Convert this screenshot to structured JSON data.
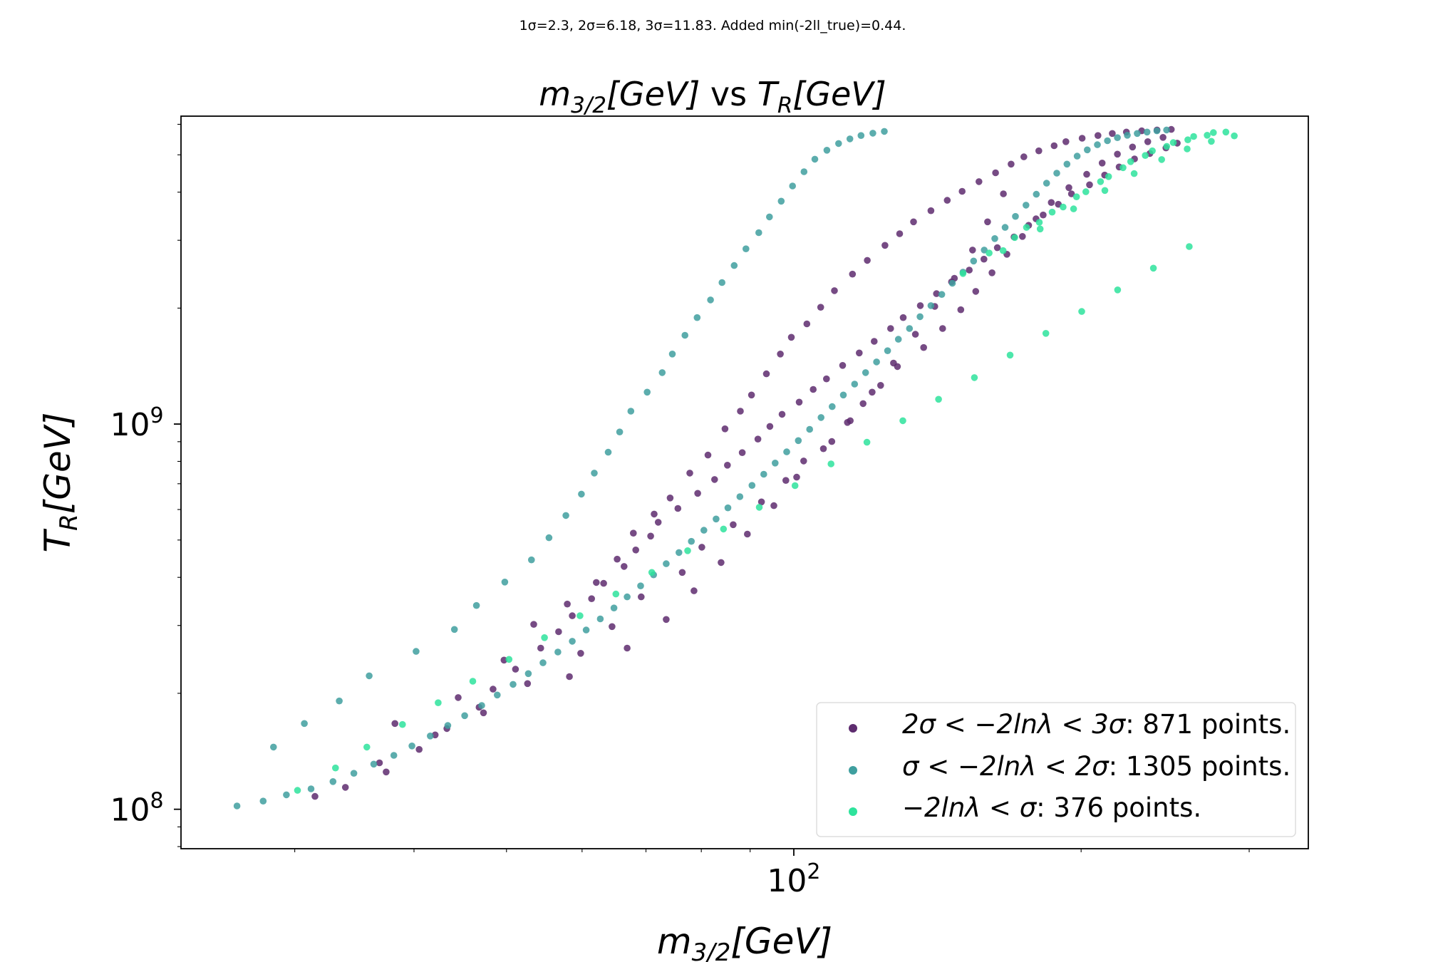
{
  "suptitle": "1σ=2.3, 2σ=6.18, 3σ=11.83. Added min(-2ll_true)=0.44.",
  "title": {
    "x_symbol": "m",
    "x_sub": "3/2",
    "x_unit": "[GeV]",
    "vs": " vs ",
    "y_symbol": "T",
    "y_sub": "R",
    "y_unit": "[GeV]"
  },
  "axes": {
    "xlabel": {
      "symbol": "m",
      "sub": "3/2",
      "unit": "[GeV]"
    },
    "ylabel": {
      "symbol": "T",
      "sub": "R",
      "unit": "[GeV]"
    },
    "x_ticks": [
      {
        "value": 100,
        "base": "10",
        "exp": "2"
      }
    ],
    "y_ticks": [
      {
        "value": 100000000,
        "base": "10",
        "exp": "8"
      },
      {
        "value": 1000000000,
        "base": "10",
        "exp": "9"
      }
    ]
  },
  "legend": {
    "entries": [
      {
        "math": "2σ < −2lnλ < 3σ",
        "text": ": 871 points."
      },
      {
        "math": "σ < −2lnλ < 2σ",
        "text": ": 1305 points."
      },
      {
        "math": "−2lnλ < σ",
        "text": ": 376 points."
      }
    ]
  },
  "chart_data": {
    "type": "scatter",
    "title": "m_3/2[GeV] vs T_R[GeV]",
    "xlabel": "m_3/2[GeV]",
    "ylabel": "T_R[GeV]",
    "x_scale": "log",
    "y_scale": "log",
    "xlim": [
      22.8,
      346
    ],
    "ylim": [
      79000000,
      6300000000
    ],
    "grid": false,
    "legend_position": "lower-right",
    "colors": {
      "band_2s_3s": "#5e2c6f",
      "band_1s_2s": "#3f9f9f",
      "band_lt_1s": "#2ee39c"
    },
    "series": [
      {
        "name": "2σ < −2lnλ < 3σ: 871 points.",
        "count": 871,
        "color": "#5e2c6f",
        "x": [
          31.5,
          33.9,
          37.4,
          40.5,
          43.3,
          46.8,
          48.4,
          51.1,
          54.3,
          56.7,
          58.6,
          61.4,
          63.2,
          66.4,
          68.3,
          70.8,
          72.1,
          75.6,
          79.3,
          82.6,
          85.2,
          88.3,
          91.7,
          94.4,
          97.2,
          101.3,
          104.8,
          108.2,
          112.5,
          117.1,
          121.4,
          126.3,
          130.2,
          135.7,
          141.1,
          146.3,
          152.7,
          158.2,
          163.4,
          170.1,
          176.2,
          182.5,
          189.3,
          195.4,
          204.1,
          211.7,
          219.2,
          227.5,
          236.1,
          245.4,
          252.2,
          38.2,
          44.5,
          49.7,
          53.4,
          57.9,
          62.1,
          65.3,
          67.9,
          71.4,
          74.2,
          77.8,
          81.3,
          84.7,
          87.9,
          90.3,
          93.6,
          96.8,
          99.4,
          103.2,
          106.7,
          110.3,
          115.2,
          119.4,
          124.6,
          129.1,
          133.5,
          139.2,
          144.8,
          150.1,
          156.3,
          162.7,
          168.9,
          174.2,
          180.6,
          187.4,
          192.8,
          200.5,
          208.3,
          215.6,
          223.1,
          231.5,
          240.2,
          248.6,
          36.8,
          42.1,
          47.3,
          52.6,
          59.8,
          64.5,
          69.2,
          76.4,
          80.1,
          86.4,
          92.5,
          98.1,
          102.4,
          109.6,
          113.8,
          118.2,
          123.3,
          128.4,
          136.8,
          143.2,
          149.6,
          155.1,
          161.3,
          167.2,
          173.6,
          179.4,
          186.1,
          194.2,
          202.7,
          210.4,
          218.3,
          226.4,
          234.9,
          243.7,
          58.2,
          66.9,
          73.5,
          78.6,
          83.9,
          89.4,
          95.3,
          100.7,
          107.4,
          114.6,
          120.8,
          127.2,
          134.1,
          140.5,
          147.3,
          153.9,
          159.6,
          165.8
        ],
        "y": [
          108000000.0,
          114000000.0,
          125000000.0,
          143000000.0,
          162000000.0,
          184000000.0,
          205000000.0,
          231000000.0,
          262000000.0,
          289000000.0,
          318000000.0,
          352000000.0,
          386000000.0,
          427000000.0,
          471000000.0,
          512000000.0,
          556000000.0,
          604000000.0,
          661000000.0,
          718000000.0,
          782000000.0,
          843000000.0,
          914000000.0,
          986000000.0,
          1060000000.0,
          1140000000.0,
          1230000000.0,
          1310000000.0,
          1420000000.0,
          1530000000.0,
          1640000000.0,
          1770000000.0,
          1890000000.0,
          2030000000.0,
          2180000000.0,
          2340000000.0,
          2510000000.0,
          2680000000.0,
          2870000000.0,
          3060000000.0,
          3280000000.0,
          3490000000.0,
          3720000000.0,
          3960000000.0,
          4180000000.0,
          4430000000.0,
          4650000000.0,
          4880000000.0,
          5040000000.0,
          5210000000.0,
          5360000000.0,
          167000000.0,
          195000000.0,
          244000000.0,
          302000000.0,
          341000000.0,
          388000000.0,
          446000000.0,
          521000000.0,
          584000000.0,
          643000000.0,
          746000000.0,
          831000000.0,
          972000000.0,
          1080000000.0,
          1190000000.0,
          1350000000.0,
          1520000000.0,
          1680000000.0,
          1820000000.0,
          2010000000.0,
          2220000000.0,
          2450000000.0,
          2660000000.0,
          2910000000.0,
          3120000000.0,
          3350000000.0,
          3580000000.0,
          3810000000.0,
          4020000000.0,
          4260000000.0,
          4490000000.0,
          4730000000.0,
          4940000000.0,
          5120000000.0,
          5280000000.0,
          5410000000.0,
          5520000000.0,
          5610000000.0,
          5680000000.0,
          5730000000.0,
          5770000000.0,
          5800000000.0,
          5820000000.0,
          132000000.0,
          156000000.0,
          178000000.0,
          212000000.0,
          254000000.0,
          298000000.0,
          356000000.0,
          412000000.0,
          479000000.0,
          548000000.0,
          628000000.0,
          714000000.0,
          802000000.0,
          901000000.0,
          1010000000.0,
          1130000000.0,
          1260000000.0,
          1410000000.0,
          1580000000.0,
          1770000000.0,
          1980000000.0,
          2210000000.0,
          2470000000.0,
          2760000000.0,
          3070000000.0,
          3410000000.0,
          3760000000.0,
          4110000000.0,
          4450000000.0,
          4760000000.0,
          5020000000.0,
          5240000000.0,
          5410000000.0,
          5550000000.0,
          221000000.0,
          262000000.0,
          311000000.0,
          369000000.0,
          437000000.0,
          518000000.0,
          614000000.0,
          728000000.0,
          863000000.0,
          1020000000.0,
          1210000000.0,
          1440000000.0,
          1710000000.0,
          2020000000.0,
          2390000000.0,
          2830000000.0,
          3350000000.0,
          3960000000.0
        ]
      },
      {
        "name": "σ < −2lnλ < 2σ: 1305 points.",
        "count": 1305,
        "color": "#3f9f9f",
        "x": [
          26.1,
          27.8,
          29.4,
          31.2,
          32.9,
          34.6,
          36.3,
          38.1,
          39.8,
          41.6,
          43.4,
          45.2,
          47.1,
          48.9,
          50.8,
          52.7,
          54.6,
          56.6,
          58.6,
          60.6,
          62.7,
          64.8,
          66.9,
          69.1,
          71.3,
          73.5,
          75.8,
          78.1,
          80.5,
          82.9,
          85.3,
          87.8,
          90.4,
          93.0,
          95.6,
          98.3,
          101.1,
          103.9,
          106.8,
          109.7,
          112.7,
          115.8,
          118.9,
          122.1,
          125.4,
          128.7,
          132.2,
          135.6,
          139.2,
          142.9,
          146.6,
          150.4,
          154.3,
          158.3,
          162.4,
          166.5,
          170.7,
          175.1,
          179.5,
          184.0,
          188.6,
          193.3,
          198.1,
          203.0,
          208.0,
          213.1,
          218.3,
          223.6,
          229.0,
          234.5,
          240.1,
          245.8,
          28.5,
          30.7,
          33.4,
          35.9,
          40.2,
          44.1,
          46.5,
          49.8,
          53.1,
          55.4,
          57.7,
          59.9,
          61.8,
          63.9,
          65.7,
          67.5,
          70.2,
          72.8,
          74.6,
          76.9,
          79.2,
          81.8,
          84.1,
          86.6,
          89.1,
          91.9,
          94.3,
          97.0,
          99.7,
          102.5,
          105.2,
          108.3,
          111.4,
          114.5,
          117.6,
          121.0,
          124.4
        ],
        "y": [
          102000000.0,
          105000000.0,
          109000000.0,
          113000000.0,
          118000000.0,
          124000000.0,
          131000000.0,
          138000000.0,
          146000000.0,
          155000000.0,
          165000000.0,
          175000000.0,
          186000000.0,
          198000000.0,
          211000000.0,
          225000000.0,
          240000000.0,
          256000000.0,
          273000000.0,
          292000000.0,
          312000000.0,
          333000000.0,
          356000000.0,
          380000000.0,
          406000000.0,
          434000000.0,
          464000000.0,
          496000000.0,
          530000000.0,
          567000000.0,
          606000000.0,
          648000000.0,
          693000000.0,
          741000000.0,
          792000000.0,
          847000000.0,
          906000000.0,
          969000000.0,
          1040000000.0,
          1110000000.0,
          1190000000.0,
          1270000000.0,
          1360000000.0,
          1450000000.0,
          1550000000.0,
          1660000000.0,
          1770000000.0,
          1900000000.0,
          2030000000.0,
          2170000000.0,
          2320000000.0,
          2480000000.0,
          2650000000.0,
          2830000000.0,
          3030000000.0,
          3240000000.0,
          3460000000.0,
          3700000000.0,
          3950000000.0,
          4220000000.0,
          4480000000.0,
          4730000000.0,
          4960000000.0,
          5150000000.0,
          5310000000.0,
          5440000000.0,
          5540000000.0,
          5620000000.0,
          5680000000.0,
          5730000000.0,
          5770000000.0,
          5800000000.0,
          145000000.0,
          167000000.0,
          191000000.0,
          222000000.0,
          257000000.0,
          293000000.0,
          338000000.0,
          389000000.0,
          444000000.0,
          507000000.0,
          579000000.0,
          658000000.0,
          746000000.0,
          845000000.0,
          954000000.0,
          1080000000.0,
          1210000000.0,
          1360000000.0,
          1520000000.0,
          1700000000.0,
          1890000000.0,
          2100000000.0,
          2330000000.0,
          2580000000.0,
          2850000000.0,
          3140000000.0,
          3450000000.0,
          3790000000.0,
          4150000000.0,
          4520000000.0,
          4870000000.0,
          5140000000.0,
          5350000000.0,
          5500000000.0,
          5610000000.0,
          5690000000.0,
          5750000000.0
        ]
      },
      {
        "name": "−2lnλ < σ: 376 points.",
        "count": 376,
        "color": "#2ee39c",
        "x": [
          30.2,
          33.1,
          35.7,
          38.9,
          42.4,
          46.1,
          50.3,
          54.8,
          59.7,
          65.1,
          71.0,
          77.4,
          84.4,
          92.0,
          100.3,
          109.4,
          119.3,
          130.1,
          141.8,
          154.6,
          168.5,
          183.7,
          200.3,
          218.4,
          238.1,
          259.6,
          160.2,
          170.4,
          180.8,
          191.5,
          202.3,
          213.7,
          225.4,
          237.5,
          249.8,
          262.4,
          275.2,
          175.3,
          186.5,
          197.8,
          209.6,
          221.3,
          233.5,
          245.9,
          258.7,
          271.1,
          283.6,
          150.4,
          165.7,
          181.2,
          196.4,
          211.8,
          227.3,
          242.9,
          258.3,
          273.8,
          289.4
        ],
        "y": [
          112000000.0,
          128000000.0,
          145000000.0,
          166000000.0,
          189000000.0,
          215000000.0,
          245000000.0,
          279000000.0,
          318000000.0,
          362000000.0,
          412000000.0,
          469000000.0,
          534000000.0,
          608000000.0,
          692000000.0,
          788000000.0,
          897000000.0,
          1020000000.0,
          1160000000.0,
          1320000000.0,
          1510000000.0,
          1720000000.0,
          1960000000.0,
          2230000000.0,
          2540000000.0,
          2890000000.0,
          2780000000.0,
          3050000000.0,
          3340000000.0,
          3660000000.0,
          4010000000.0,
          4390000000.0,
          4800000000.0,
          5120000000.0,
          5380000000.0,
          5580000000.0,
          5710000000.0,
          3240000000.0,
          3550000000.0,
          3890000000.0,
          4260000000.0,
          4630000000.0,
          4980000000.0,
          5260000000.0,
          5470000000.0,
          5620000000.0,
          5730000000.0,
          2460000000.0,
          2820000000.0,
          3210000000.0,
          3620000000.0,
          4040000000.0,
          4470000000.0,
          4860000000.0,
          5180000000.0,
          5420000000.0,
          5600000000.0
        ]
      }
    ]
  }
}
